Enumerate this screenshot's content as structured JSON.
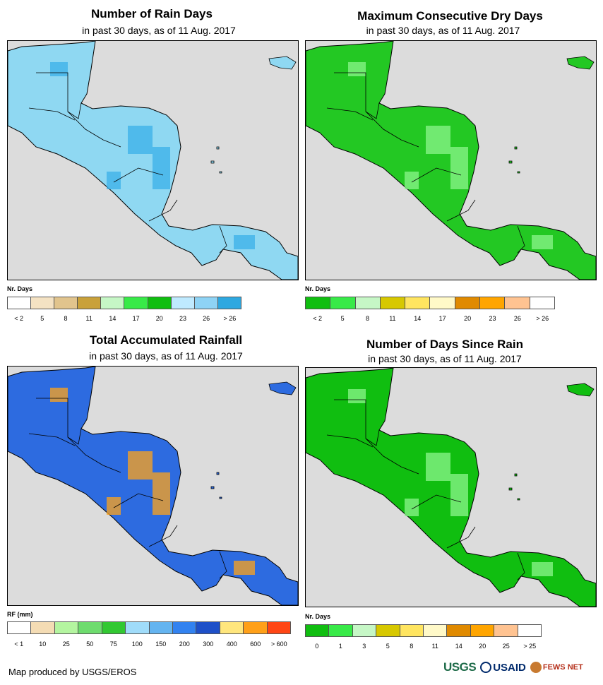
{
  "panels": [
    {
      "title": "Number of Rain Days",
      "subtitle": "in past 30 days, as of 11 Aug. 2017",
      "map_fill": "#8fd8f2",
      "map_accent": "#3ab0e8",
      "legend": {
        "title": "Nr. Days",
        "colors": [
          "#ffffff",
          "#f4e2c3",
          "#e1c48d",
          "#c9a13a",
          "#c6f7c6",
          "#38ea48",
          "#10be10",
          "#bfeaff",
          "#8ed3f5",
          "#2ea8e0"
        ],
        "labels": [
          "< 2",
          "5",
          "8",
          "11",
          "14",
          "17",
          "20",
          "23",
          "26",
          "> 26"
        ]
      }
    },
    {
      "title": "Maximum Consecutive Dry Days",
      "subtitle": "in past 30 days, as of 11 Aug. 2017",
      "map_fill": "#23c823",
      "map_accent": "#8cf58c",
      "legend": {
        "title": "Nr. Days",
        "colors": [
          "#10be10",
          "#38ea48",
          "#c6f7c6",
          "#d7c800",
          "#ffe560",
          "#fff9c8",
          "#e08a00",
          "#ffa500",
          "#ffc391",
          "#ffffff"
        ],
        "labels": [
          "< 2",
          "5",
          "8",
          "11",
          "14",
          "17",
          "20",
          "23",
          "26",
          "> 26"
        ]
      }
    },
    {
      "title": "Total Accumulated Rainfall",
      "subtitle": "in past 30 days, as of 11 Aug. 2017",
      "map_fill": "#2d6be0",
      "map_accent": "#ffa31a",
      "legend": {
        "title": "RF (mm)",
        "colors": [
          "#ffffff",
          "#f4dcb4",
          "#b4f5a0",
          "#6edc6e",
          "#32c832",
          "#a0dcfa",
          "#64b4f0",
          "#3282f0",
          "#1e50c8",
          "#ffe67d",
          "#ffa019",
          "#ff4614"
        ],
        "labels": [
          "< 1",
          "10",
          "25",
          "50",
          "75",
          "100",
          "150",
          "200",
          "300",
          "400",
          "600",
          "> 600"
        ]
      }
    },
    {
      "title": "Number of Days Since Rain",
      "subtitle": "in past 30 days, as of 11 Aug. 2017",
      "map_fill": "#10be10",
      "map_accent": "#8cf58c",
      "legend": {
        "title": "Nr. Days",
        "colors": [
          "#10be10",
          "#38ea48",
          "#c6f7c6",
          "#d7c800",
          "#ffe560",
          "#fff9c8",
          "#e08a00",
          "#ffa500",
          "#ffc391",
          "#ffffff"
        ],
        "labels": [
          "0",
          "1",
          "3",
          "5",
          "8",
          "11",
          "14",
          "20",
          "25",
          "> 25"
        ]
      }
    }
  ],
  "footer": {
    "credit": "Map produced by USGS/EROS",
    "logos": {
      "usgs": "USGS",
      "usaid": "USAID",
      "fews": "FEWS NET"
    }
  },
  "colors": {
    "ocean": "#dcdcdc",
    "border": "#000000"
  }
}
